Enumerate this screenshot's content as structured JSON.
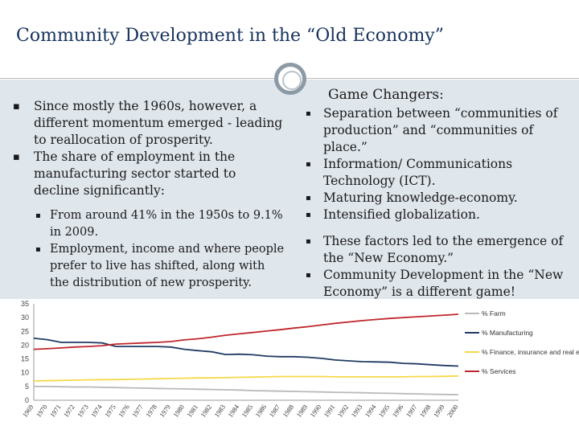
{
  "slide": {
    "title": "Community Development in the “Old Economy”"
  },
  "left": {
    "bullets": [
      "Since mostly the 1960s, however, a different momentum emerged - leading to reallocation of prosperity.",
      "The share of employment in the manufacturing sector started to decline significantly:"
    ],
    "sub_bullets": [
      "From around 41% in the 1950s to 9.1% in 2009.",
      "Employment, income and where people prefer to live has shifted, along with the distribution of new prosperity."
    ]
  },
  "right": {
    "header": "Game Changers:",
    "changers": [
      "Separation between “communities of production” and “communities of place.”",
      "Information/ Communications Technology (ICT).",
      "Maturing knowledge-economy.",
      "Intensified globalization."
    ],
    "conclusions": [
      "These factors led to the emergence of the “New Economy.”",
      "Community Development in the “New Economy” is a different game!"
    ]
  },
  "colors": {
    "title": "#16325c",
    "band": "#dfe6ec",
    "farm": "#b9b9b9",
    "manufacturing": "#1f3b63",
    "finance": "#f5d94a",
    "services": "#c0262b"
  },
  "chart_data": {
    "type": "line",
    "title": "",
    "xlabel": "",
    "ylabel": "",
    "ylim": [
      0,
      35
    ],
    "yticks": [
      "0",
      "5",
      "10",
      "15",
      "20",
      "25",
      "30",
      "35"
    ],
    "x": [
      "1969",
      "1970",
      "1971",
      "1972",
      "1973",
      "1974",
      "1975",
      "1976",
      "1977",
      "1978",
      "1979",
      "1980",
      "1981",
      "1982",
      "1983",
      "1984",
      "1985",
      "1986",
      "1987",
      "1988",
      "1989",
      "1990",
      "1991",
      "1992",
      "1993",
      "1994",
      "1995",
      "1996",
      "1997",
      "1998",
      "1999",
      "2000"
    ],
    "series": [
      {
        "name": "% Farm",
        "color": "#b9b9b9",
        "values": [
          5,
          5,
          4.9,
          4.8,
          4.8,
          4.7,
          4.6,
          4.5,
          4.4,
          4.3,
          4.2,
          4.1,
          4.0,
          3.9,
          3.8,
          3.7,
          3.5,
          3.4,
          3.3,
          3.2,
          3.1,
          3.0,
          2.9,
          2.8,
          2.7,
          2.6,
          2.5,
          2.4,
          2.3,
          2.2,
          2.1,
          2.0
        ]
      },
      {
        "name": "% Manufacturing",
        "color": "#1f3b63",
        "values": [
          22.5,
          22,
          21,
          21,
          21,
          20.8,
          19.5,
          19.5,
          19.5,
          19.5,
          19.3,
          18.5,
          18,
          17.6,
          16.6,
          16.7,
          16.5,
          16.0,
          15.8,
          15.8,
          15.6,
          15.2,
          14.6,
          14.3,
          14.0,
          13.9,
          13.8,
          13.4,
          13.2,
          12.9,
          12.6,
          12.4
        ]
      },
      {
        "name": "% Finance, insurance and real estate",
        "color": "#f5d94a",
        "values": [
          7,
          7.1,
          7.2,
          7.3,
          7.4,
          7.5,
          7.5,
          7.6,
          7.7,
          7.8,
          7.9,
          8.0,
          8.1,
          8.1,
          8.2,
          8.3,
          8.4,
          8.5,
          8.6,
          8.6,
          8.6,
          8.6,
          8.5,
          8.5,
          8.5,
          8.5,
          8.5,
          8.5,
          8.6,
          8.6,
          8.7,
          8.8
        ]
      },
      {
        "name": "% Services",
        "color": "#c0262b",
        "values": [
          18.5,
          18.7,
          19,
          19.3,
          19.5,
          19.8,
          20.4,
          20.6,
          20.8,
          21.0,
          21.3,
          21.9,
          22.3,
          22.9,
          23.6,
          24.1,
          24.6,
          25.1,
          25.6,
          26.2,
          26.7,
          27.3,
          27.9,
          28.4,
          28.9,
          29.3,
          29.7,
          30.0,
          30.3,
          30.6,
          30.9,
          31.2
        ]
      }
    ]
  }
}
